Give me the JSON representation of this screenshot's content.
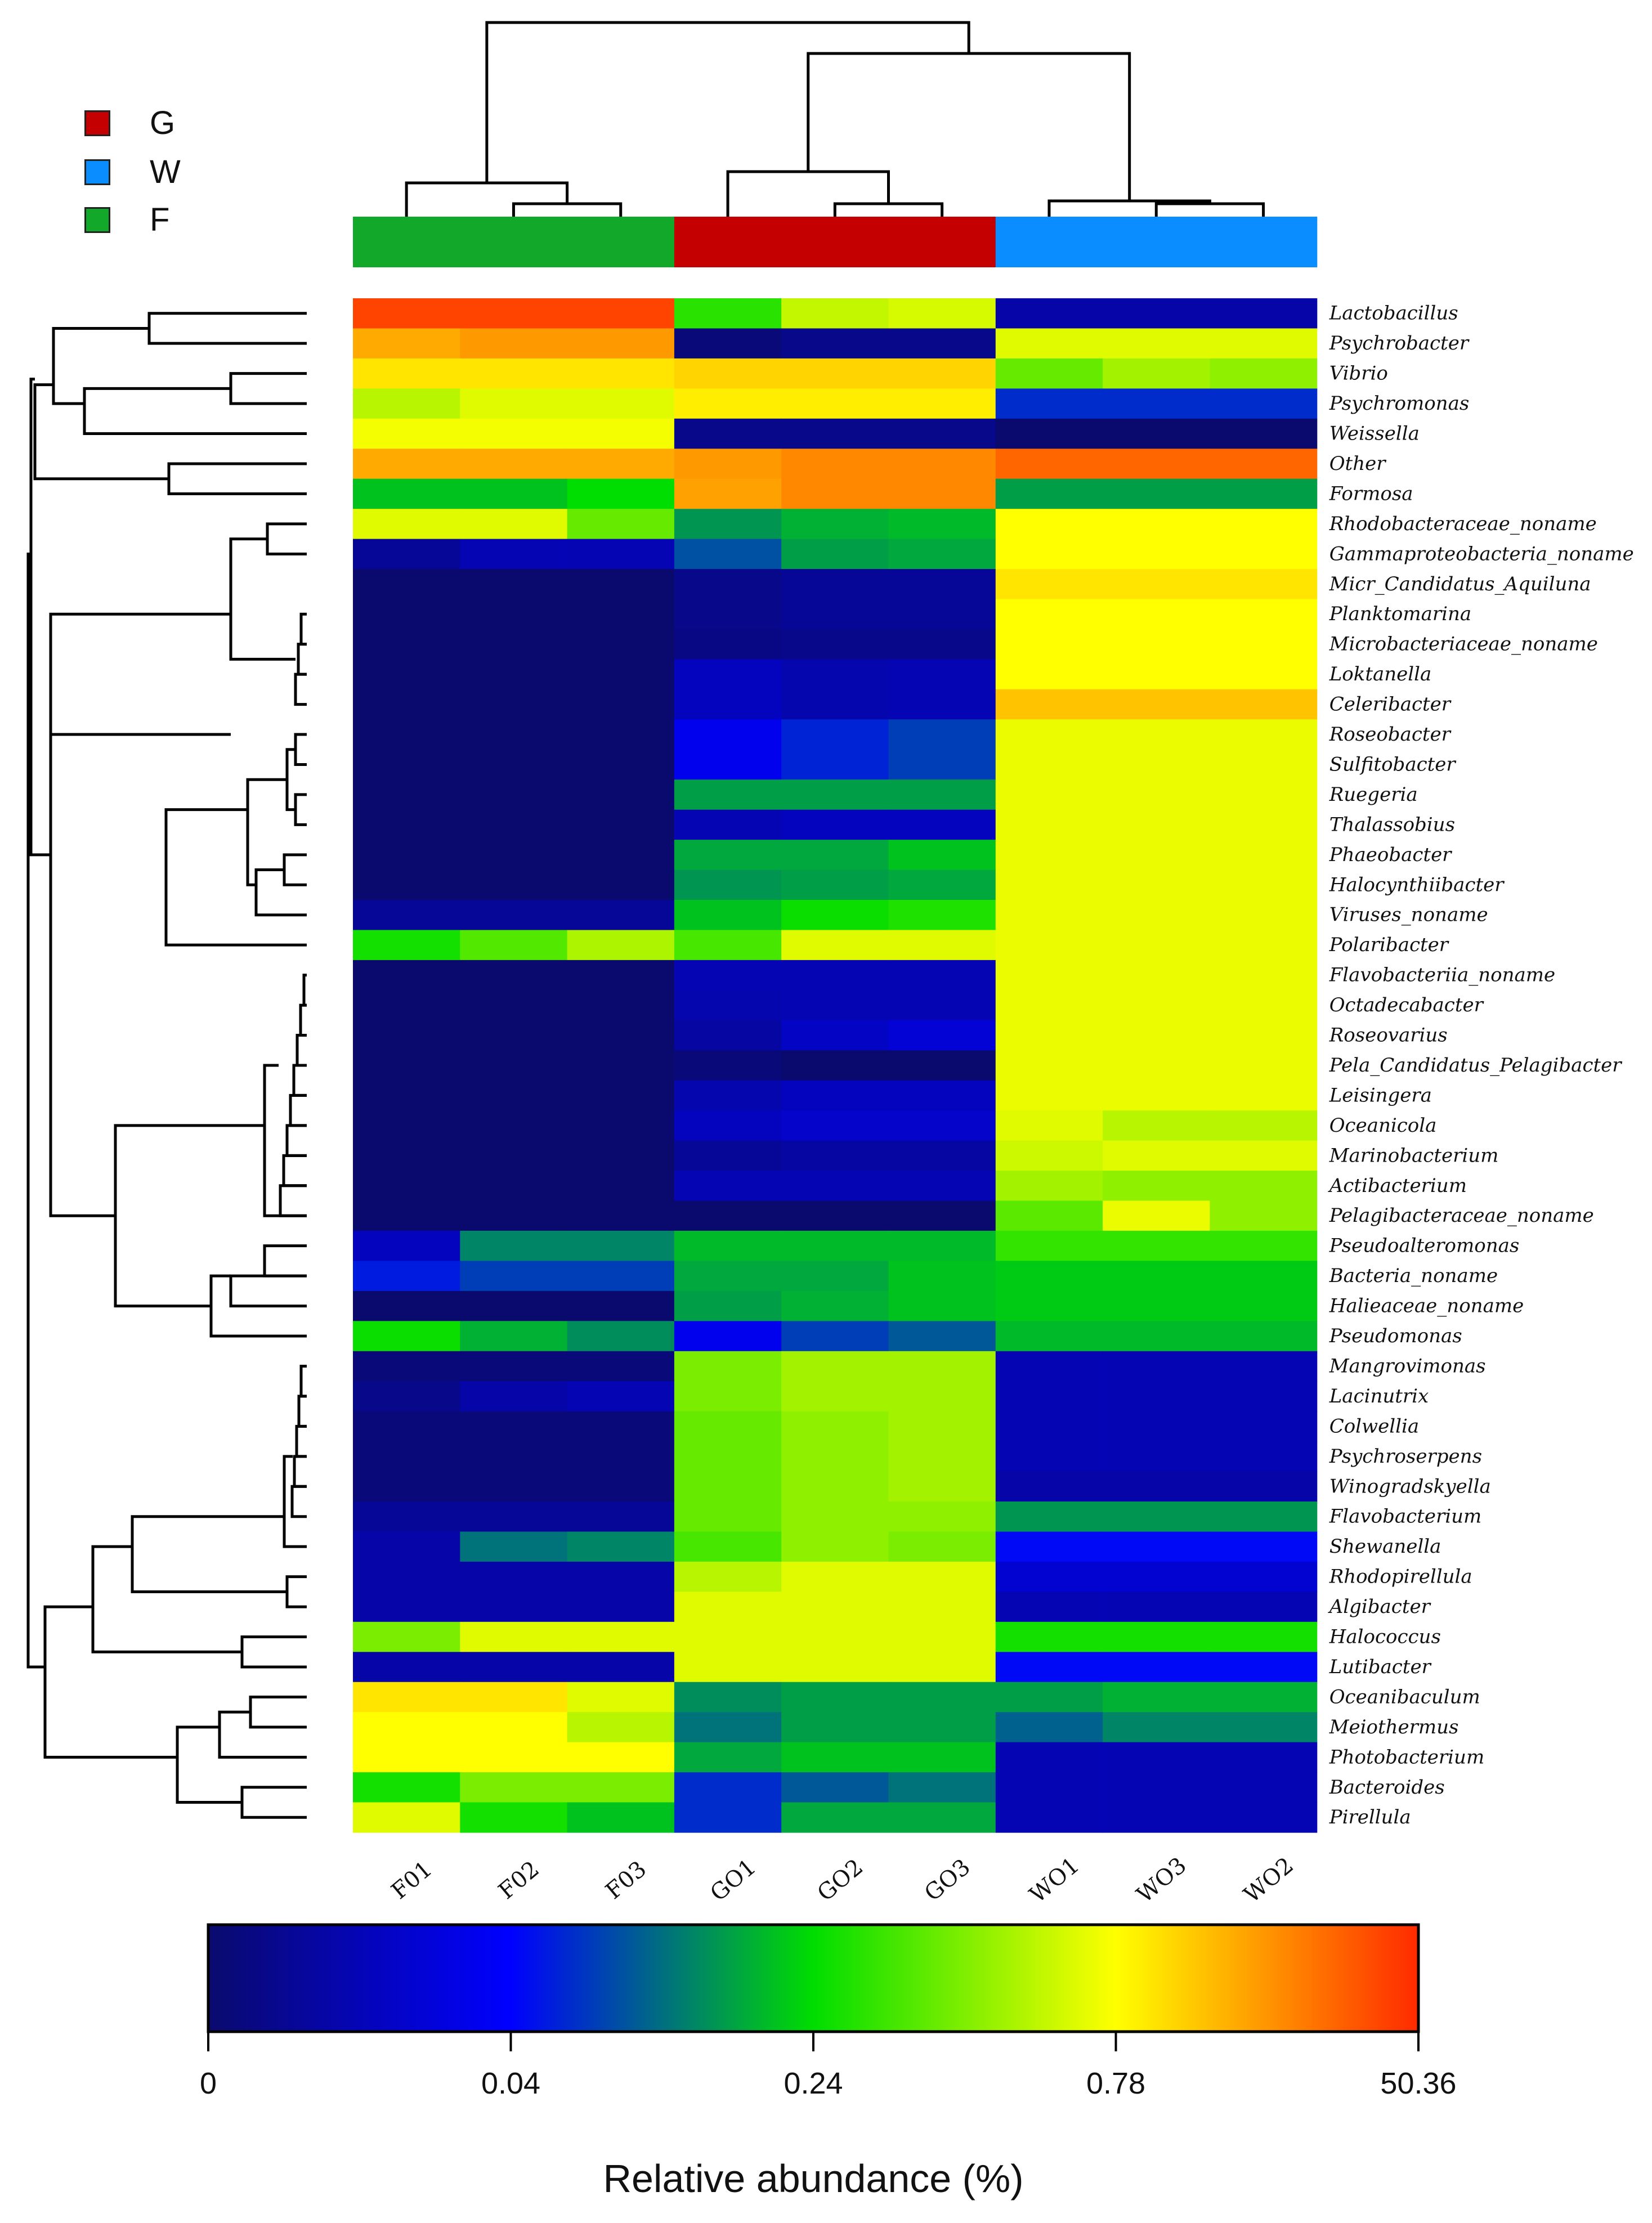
{
  "chart_data": {
    "type": "heatmap",
    "title": "",
    "legend": {
      "position": "top-left",
      "groups": [
        {
          "name": "G",
          "color": "#c40000"
        },
        {
          "name": "W",
          "color": "#0a8dff"
        },
        {
          "name": "F",
          "color": "#12a82a"
        }
      ]
    },
    "columns": [
      "F01",
      "F02",
      "F03",
      "GO1",
      "GO2",
      "GO3",
      "WO1",
      "WO3",
      "WO2"
    ],
    "column_groups": [
      "F",
      "F",
      "F",
      "G",
      "G",
      "G",
      "W",
      "W",
      "W"
    ],
    "rows": [
      "Lactobacillus",
      "Psychrobacter",
      "Vibrio",
      "Psychromonas",
      "Weissella",
      "Other",
      "Formosa",
      "Rhodobacteraceae_noname",
      "Gammaproteobacteria_noname",
      "Micr_Candidatus_Aquiluna",
      "Planktomarina",
      "Microbacteriaceae_noname",
      "Loktanella",
      "Celeribacter",
      "Roseobacter",
      "Sulfitobacter",
      "Ruegeria",
      "Thalassobius",
      "Phaeobacter",
      "Halocynthiibacter",
      "Viruses_noname",
      "Polaribacter",
      "Flavobacteriia_noname",
      "Octadecabacter",
      "Roseovarius",
      "Pela_Candidatus_Pelagibacter",
      "Leisingera",
      "Oceanicola",
      "Marinobacterium",
      "Actibacterium",
      "Pelagibacteraceae_noname",
      "Pseudoalteromonas",
      "Bacteria_noname",
      "Halieaceae_noname",
      "Pseudomonas",
      "Mangrovimonas",
      "Lacinutrix",
      "Colwellia",
      "Psychroserpens",
      "Winogradskyella",
      "Flavobacterium",
      "Shewanella",
      "Rhodopirellula",
      "Algibacter",
      "Halococcus",
      "Lutibacter",
      "Oceanibaculum",
      "Meiothermus",
      "Photobacterium",
      "Bacteroides",
      "Pirellula"
    ],
    "color_scale_positions": [
      0.97,
      0.85,
      0.67,
      0.67,
      0.02,
      0.89,
      0.43
    ],
    "values": [
      [
        0.97,
        0.97,
        0.97,
        0.54,
        0.69,
        0.71,
        0.1,
        0.1,
        0.1
      ],
      [
        0.85,
        0.87,
        0.87,
        0.02,
        0.05,
        0.05,
        0.72,
        0.72,
        0.72
      ],
      [
        0.78,
        0.78,
        0.78,
        0.8,
        0.8,
        0.8,
        0.6,
        0.66,
        0.64
      ],
      [
        0.68,
        0.72,
        0.72,
        0.77,
        0.77,
        0.77,
        0.3,
        0.3,
        0.3
      ],
      [
        0.74,
        0.74,
        0.74,
        0.05,
        0.05,
        0.05,
        0.0,
        0.0,
        0.0
      ],
      [
        0.85,
        0.85,
        0.85,
        0.87,
        0.89,
        0.89,
        0.93,
        0.93,
        0.93
      ],
      [
        0.47,
        0.47,
        0.5,
        0.86,
        0.89,
        0.89,
        0.43,
        0.43,
        0.43
      ],
      [
        0.72,
        0.72,
        0.6,
        0.42,
        0.45,
        0.46,
        0.75,
        0.75,
        0.75
      ],
      [
        0.07,
        0.12,
        0.12,
        0.34,
        0.43,
        0.44,
        0.75,
        0.75,
        0.75
      ],
      [
        0.0,
        0.0,
        0.0,
        0.05,
        0.07,
        0.07,
        0.78,
        0.78,
        0.78
      ],
      [
        0.0,
        0.0,
        0.0,
        0.05,
        0.07,
        0.07,
        0.75,
        0.75,
        0.75
      ],
      [
        0.0,
        0.0,
        0.0,
        0.04,
        0.05,
        0.05,
        0.75,
        0.75,
        0.75
      ],
      [
        0.0,
        0.0,
        0.0,
        0.14,
        0.11,
        0.12,
        0.75,
        0.75,
        0.75
      ],
      [
        0.0,
        0.0,
        0.0,
        0.14,
        0.11,
        0.12,
        0.82,
        0.82,
        0.82
      ],
      [
        0.0,
        0.0,
        0.0,
        0.22,
        0.29,
        0.32,
        0.73,
        0.73,
        0.73
      ],
      [
        0.0,
        0.0,
        0.0,
        0.22,
        0.29,
        0.32,
        0.73,
        0.73,
        0.73
      ],
      [
        0.0,
        0.0,
        0.0,
        0.43,
        0.43,
        0.43,
        0.73,
        0.73,
        0.73
      ],
      [
        0.0,
        0.0,
        0.0,
        0.12,
        0.14,
        0.14,
        0.73,
        0.73,
        0.73
      ],
      [
        0.0,
        0.0,
        0.0,
        0.44,
        0.44,
        0.47,
        0.73,
        0.73,
        0.73
      ],
      [
        0.0,
        0.0,
        0.0,
        0.42,
        0.43,
        0.44,
        0.73,
        0.73,
        0.73
      ],
      [
        0.07,
        0.07,
        0.07,
        0.47,
        0.51,
        0.53,
        0.73,
        0.73,
        0.73
      ],
      [
        0.52,
        0.58,
        0.67,
        0.57,
        0.72,
        0.72,
        0.73,
        0.73,
        0.73
      ],
      [
        0.0,
        0.0,
        0.0,
        0.12,
        0.12,
        0.12,
        0.73,
        0.73,
        0.73
      ],
      [
        0.0,
        0.0,
        0.0,
        0.11,
        0.12,
        0.12,
        0.73,
        0.73,
        0.73
      ],
      [
        0.0,
        0.0,
        0.0,
        0.09,
        0.15,
        0.18,
        0.73,
        0.73,
        0.73
      ],
      [
        0.0,
        0.0,
        0.0,
        0.02,
        0.0,
        0.0,
        0.73,
        0.73,
        0.73
      ],
      [
        0.0,
        0.0,
        0.0,
        0.11,
        0.14,
        0.14,
        0.73,
        0.73,
        0.73
      ],
      [
        0.0,
        0.0,
        0.0,
        0.14,
        0.16,
        0.16,
        0.72,
        0.68,
        0.68
      ],
      [
        0.0,
        0.0,
        0.0,
        0.07,
        0.09,
        0.09,
        0.7,
        0.72,
        0.72
      ],
      [
        0.0,
        0.0,
        0.0,
        0.12,
        0.12,
        0.12,
        0.66,
        0.64,
        0.64
      ],
      [
        0.0,
        0.0,
        0.0,
        0.0,
        0.0,
        0.0,
        0.59,
        0.73,
        0.64
      ],
      [
        0.14,
        0.4,
        0.4,
        0.46,
        0.46,
        0.46,
        0.55,
        0.55,
        0.55
      ],
      [
        0.28,
        0.32,
        0.32,
        0.44,
        0.44,
        0.47,
        0.48,
        0.48,
        0.48
      ],
      [
        0.0,
        0.0,
        0.0,
        0.43,
        0.45,
        0.47,
        0.48,
        0.48,
        0.48
      ],
      [
        0.51,
        0.45,
        0.41,
        0.22,
        0.32,
        0.35,
        0.46,
        0.46,
        0.46
      ],
      [
        0.02,
        0.02,
        0.02,
        0.62,
        0.66,
        0.66,
        0.12,
        0.12,
        0.12
      ],
      [
        0.05,
        0.1,
        0.12,
        0.62,
        0.66,
        0.66,
        0.12,
        0.12,
        0.12
      ],
      [
        0.02,
        0.02,
        0.02,
        0.6,
        0.64,
        0.66,
        0.12,
        0.12,
        0.12
      ],
      [
        0.02,
        0.02,
        0.02,
        0.6,
        0.64,
        0.66,
        0.12,
        0.12,
        0.12
      ],
      [
        0.02,
        0.02,
        0.02,
        0.6,
        0.64,
        0.66,
        0.1,
        0.1,
        0.1
      ],
      [
        0.07,
        0.07,
        0.07,
        0.6,
        0.64,
        0.64,
        0.42,
        0.42,
        0.42
      ],
      [
        0.1,
        0.38,
        0.4,
        0.57,
        0.64,
        0.62,
        0.26,
        0.26,
        0.26
      ],
      [
        0.1,
        0.1,
        0.1,
        0.68,
        0.72,
        0.72,
        0.17,
        0.17,
        0.17
      ],
      [
        0.1,
        0.1,
        0.1,
        0.72,
        0.72,
        0.72,
        0.12,
        0.12,
        0.12
      ],
      [
        0.62,
        0.72,
        0.72,
        0.72,
        0.72,
        0.72,
        0.52,
        0.52,
        0.52
      ],
      [
        0.1,
        0.1,
        0.1,
        0.72,
        0.72,
        0.72,
        0.26,
        0.26,
        0.26
      ],
      [
        0.78,
        0.78,
        0.72,
        0.41,
        0.43,
        0.43,
        0.43,
        0.45,
        0.45
      ],
      [
        0.75,
        0.75,
        0.68,
        0.38,
        0.43,
        0.43,
        0.36,
        0.4,
        0.4
      ],
      [
        0.75,
        0.75,
        0.75,
        0.44,
        0.47,
        0.47,
        0.12,
        0.12,
        0.12
      ],
      [
        0.52,
        0.62,
        0.62,
        0.3,
        0.35,
        0.38,
        0.12,
        0.12,
        0.12
      ],
      [
        0.72,
        0.52,
        0.47,
        0.3,
        0.44,
        0.44,
        0.12,
        0.12,
        0.12
      ]
    ],
    "colorbar": {
      "title": "Relative abundance (%)",
      "ticks": [
        "0",
        "0.04",
        "0.24",
        "0.78",
        "50.36"
      ],
      "colors": [
        "#0a0a6e",
        "#0000ff",
        "#00dd00",
        "#ffff00",
        "#ff2a00"
      ]
    }
  }
}
